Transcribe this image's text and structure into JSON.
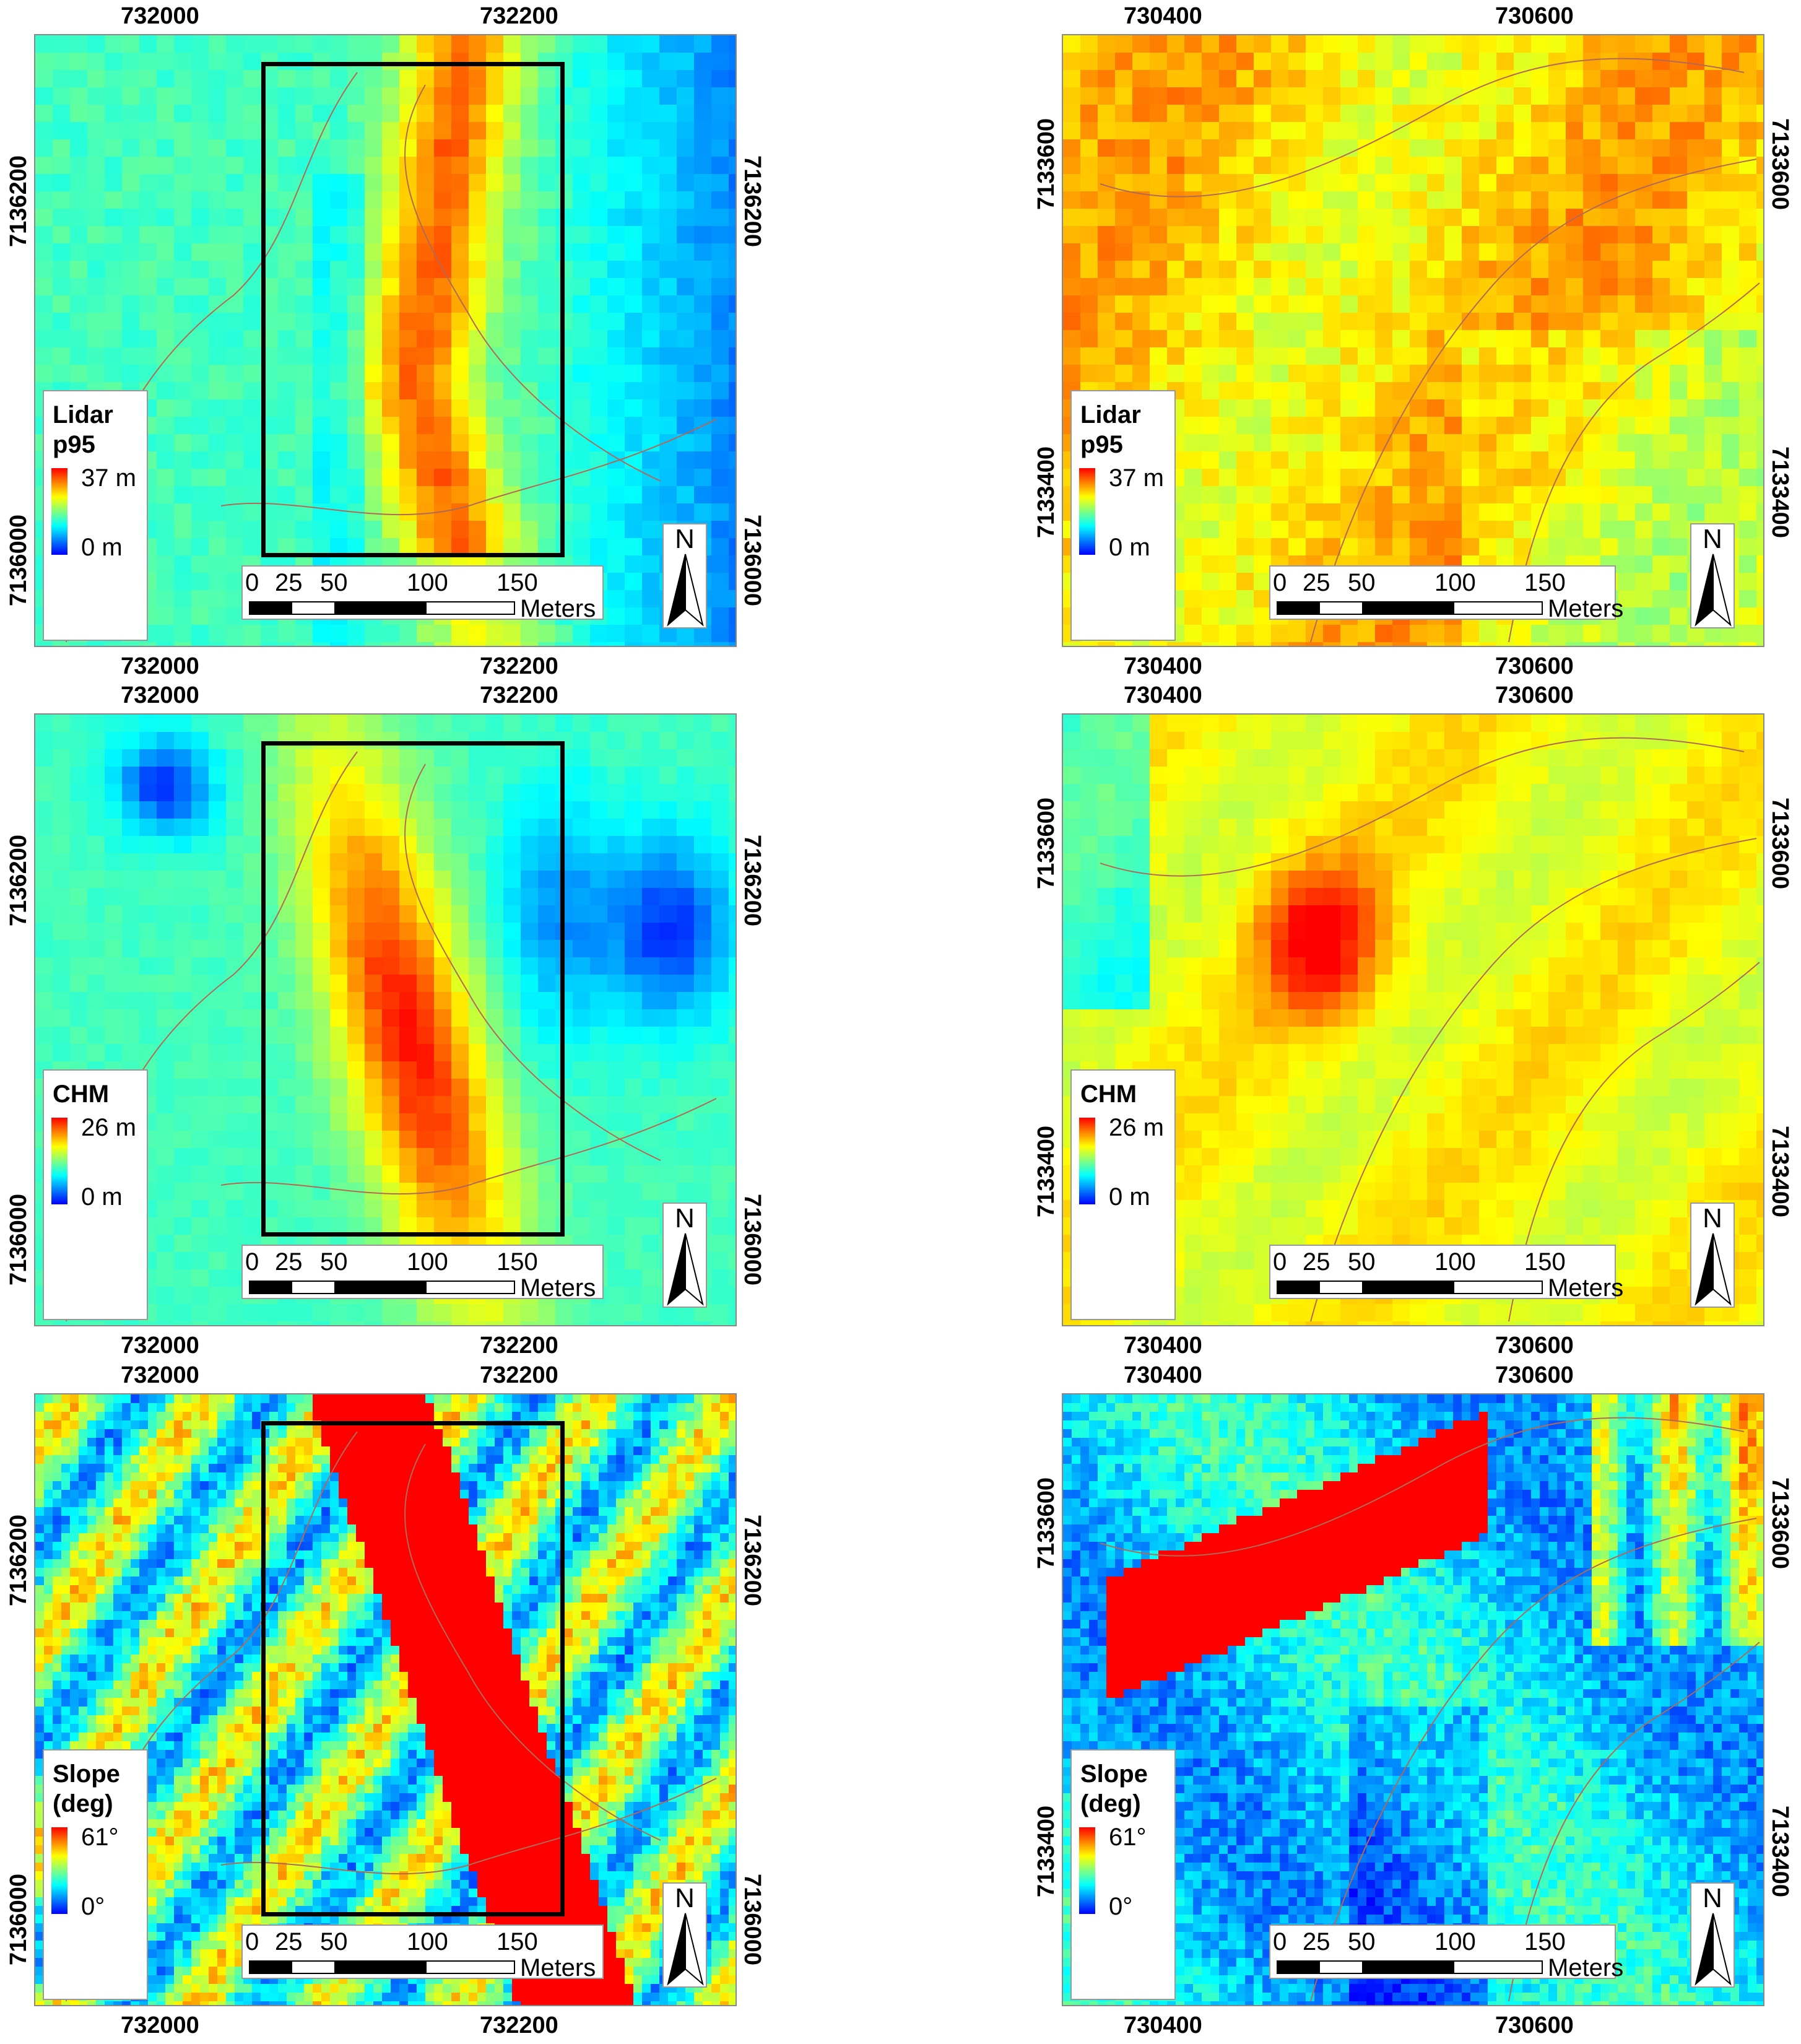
{
  "colors": {
    "ramp": [
      "#0000ff",
      "#0080ff",
      "#00ffff",
      "#80ff80",
      "#ffff00",
      "#ff8000",
      "#ff0000"
    ],
    "boundary": "#b06a55",
    "frame": "#000000"
  },
  "panels": [
    {
      "id": "lidar-left",
      "legend": {
        "title_lines": [
          "Lidar",
          "p95"
        ],
        "max": "37 m",
        "min": "0 m"
      },
      "top_ticks": [
        "732000",
        "732200"
      ],
      "bottom_ticks": [
        "732000",
        "732200"
      ],
      "left_ticks": [
        "7136200",
        "7136000"
      ],
      "right_ticks": [
        "7136200",
        "7136000"
      ],
      "scale": {
        "ticks": [
          "0",
          "25",
          "50",
          "100",
          "150"
        ],
        "unit": "Meters"
      },
      "north": "N",
      "study_box": true,
      "seed": 11
    },
    {
      "id": "lidar-right",
      "legend": {
        "title_lines": [
          "Lidar",
          "p95"
        ],
        "max": "37 m",
        "min": "0 m"
      },
      "top_ticks": [
        "730400",
        "730600"
      ],
      "bottom_ticks": [
        "730400",
        "730600"
      ],
      "left_ticks": [
        "7133600",
        "7133400"
      ],
      "right_ticks": [
        "7133600",
        "7133400"
      ],
      "scale": {
        "ticks": [
          "0",
          "25",
          "50",
          "100",
          "150"
        ],
        "unit": "Meters"
      },
      "north": "N",
      "study_box": false,
      "seed": 23
    },
    {
      "id": "chm-left",
      "legend": {
        "title_lines": [
          "CHM"
        ],
        "max": "26 m",
        "min": "0 m"
      },
      "top_ticks": [
        "732000",
        "732200"
      ],
      "bottom_ticks": [
        "732000",
        "732200"
      ],
      "left_ticks": [
        "7136200",
        "7136000"
      ],
      "right_ticks": [
        "7136200",
        "7136000"
      ],
      "scale": {
        "ticks": [
          "0",
          "25",
          "50",
          "100",
          "150"
        ],
        "unit": "Meters"
      },
      "north": "N",
      "study_box": true,
      "seed": 37
    },
    {
      "id": "chm-right",
      "legend": {
        "title_lines": [
          "CHM"
        ],
        "max": "26 m",
        "min": "0 m"
      },
      "top_ticks": [
        "730400",
        "730600"
      ],
      "bottom_ticks": [
        "730400",
        "730600"
      ],
      "left_ticks": [
        "7133600",
        "7133400"
      ],
      "right_ticks": [
        "7133600",
        "7133400"
      ],
      "scale": {
        "ticks": [
          "0",
          "25",
          "50",
          "100",
          "150"
        ],
        "unit": "Meters"
      },
      "north": "N",
      "study_box": false,
      "seed": 41
    },
    {
      "id": "slope-left",
      "legend": {
        "title_lines": [
          "Slope",
          "(deg)"
        ],
        "max": "61°",
        "min": "0°"
      },
      "top_ticks": [
        "732000",
        "732200"
      ],
      "bottom_ticks": [
        "732000",
        "732200"
      ],
      "left_ticks": [
        "7136200",
        "7136000"
      ],
      "right_ticks": [
        "7136200",
        "7136000"
      ],
      "scale": {
        "ticks": [
          "0",
          "25",
          "50",
          "100",
          "150"
        ],
        "unit": "Meters"
      },
      "north": "N",
      "study_box": true,
      "seed": 53
    },
    {
      "id": "slope-right",
      "legend": {
        "title_lines": [
          "Slope",
          "(deg)"
        ],
        "max": "61°",
        "min": "0°"
      },
      "top_ticks": [
        "730400",
        "730600"
      ],
      "bottom_ticks": [
        "730400",
        "730600"
      ],
      "left_ticks": [
        "7133600",
        "7133400"
      ],
      "right_ticks": [
        "7133600",
        "7133400"
      ],
      "scale": {
        "ticks": [
          "0",
          "25",
          "50",
          "100",
          "150"
        ],
        "unit": "Meters"
      },
      "north": "N",
      "study_box": false,
      "seed": 67
    }
  ]
}
